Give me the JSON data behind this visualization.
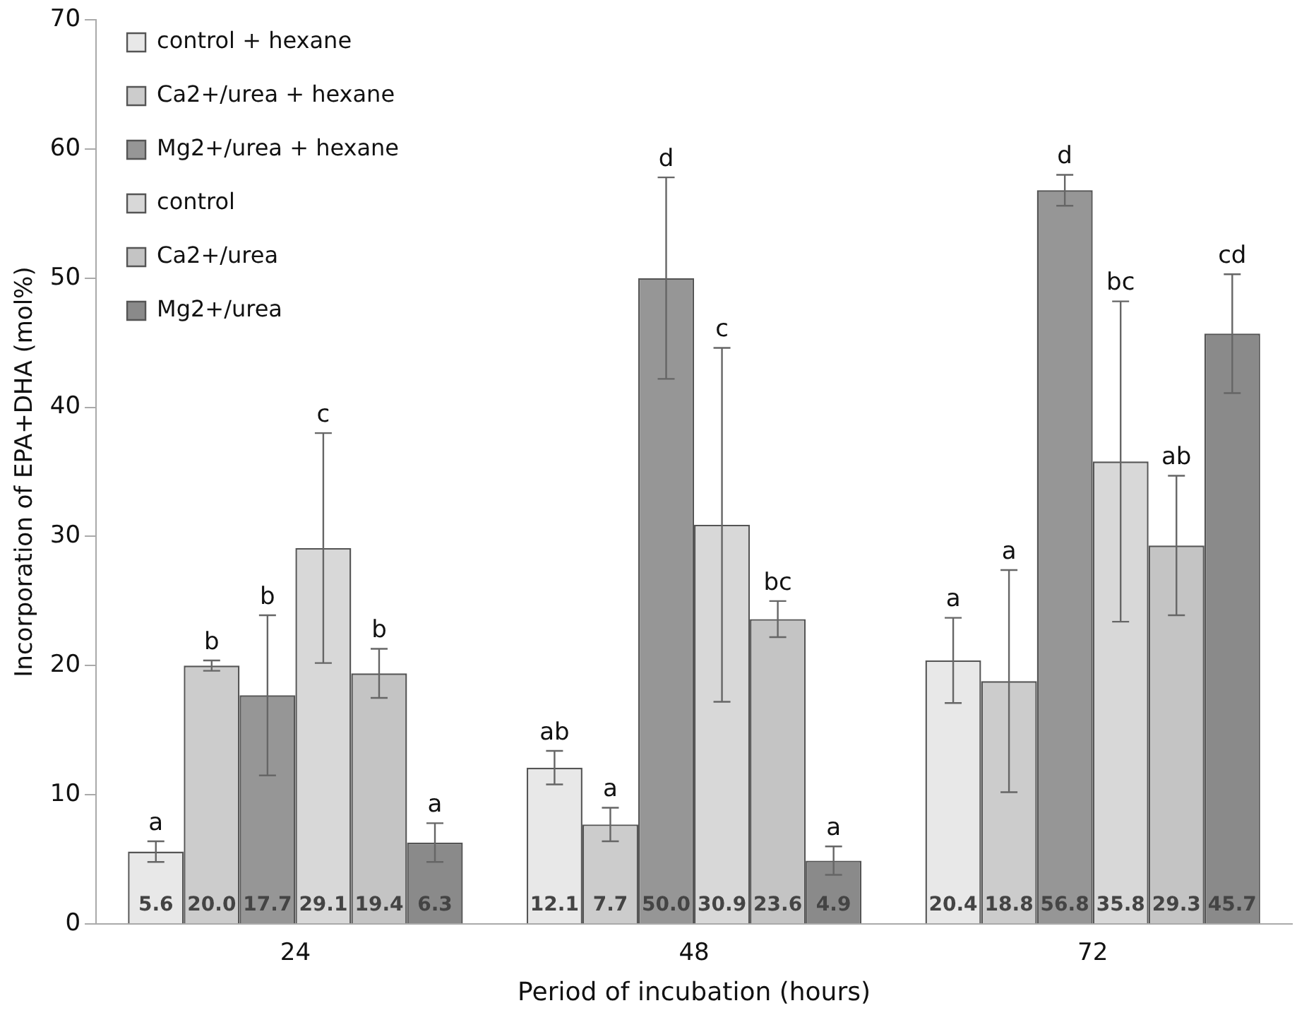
{
  "chart_data": {
    "type": "bar",
    "xlabel": "Period of incubation (hours)",
    "ylabel": "Incorporation of EPA+DHA (mol%)",
    "categories": [
      "24",
      "48",
      "72"
    ],
    "series": [
      {
        "name": "control + hexane",
        "color": "#e8e8e8",
        "values": [
          5.6,
          12.1,
          20.4
        ],
        "errors": [
          0.8,
          1.3,
          3.3
        ]
      },
      {
        "name": "Ca2+/urea + hexane",
        "color": "#cccccc",
        "values": [
          20.0,
          7.7,
          18.8
        ],
        "errors": [
          0.4,
          1.3,
          8.6
        ],
        "value_labels": [
          "20.0",
          "7.7",
          "18.8"
        ]
      },
      {
        "name": "Mg2+/urea + hexane",
        "color": "#969696",
        "values": [
          17.7,
          50.0,
          56.8
        ],
        "errors": [
          6.2,
          7.8,
          1.2
        ],
        "value_labels": [
          "17.7",
          "50.0",
          "56.8"
        ]
      },
      {
        "name": "control",
        "color": "#d8d8d8",
        "values": [
          29.1,
          30.9,
          35.8
        ],
        "errors": [
          8.9,
          13.7,
          12.4
        ]
      },
      {
        "name": "Ca2+/urea",
        "color": "#c4c4c4",
        "values": [
          19.4,
          23.6,
          29.3
        ],
        "errors": [
          1.9,
          1.4,
          5.4
        ]
      },
      {
        "name": "Mg2+/urea",
        "color": "#8a8a8a",
        "values": [
          6.3,
          4.9,
          45.7
        ],
        "errors": [
          1.5,
          1.1,
          4.6
        ]
      }
    ],
    "ylim": [
      0,
      70
    ],
    "yticks": [
      0,
      10,
      20,
      30,
      40,
      50,
      60,
      70
    ],
    "grid": false,
    "legend": "top left",
    "data_labels": true,
    "annotations": [
      "a",
      "b",
      "b",
      "c",
      "b",
      "a",
      "ab",
      "a",
      "d",
      "c",
      "bc",
      "a",
      "a",
      "a",
      "d",
      "bc",
      "ab",
      "cd"
    ]
  }
}
